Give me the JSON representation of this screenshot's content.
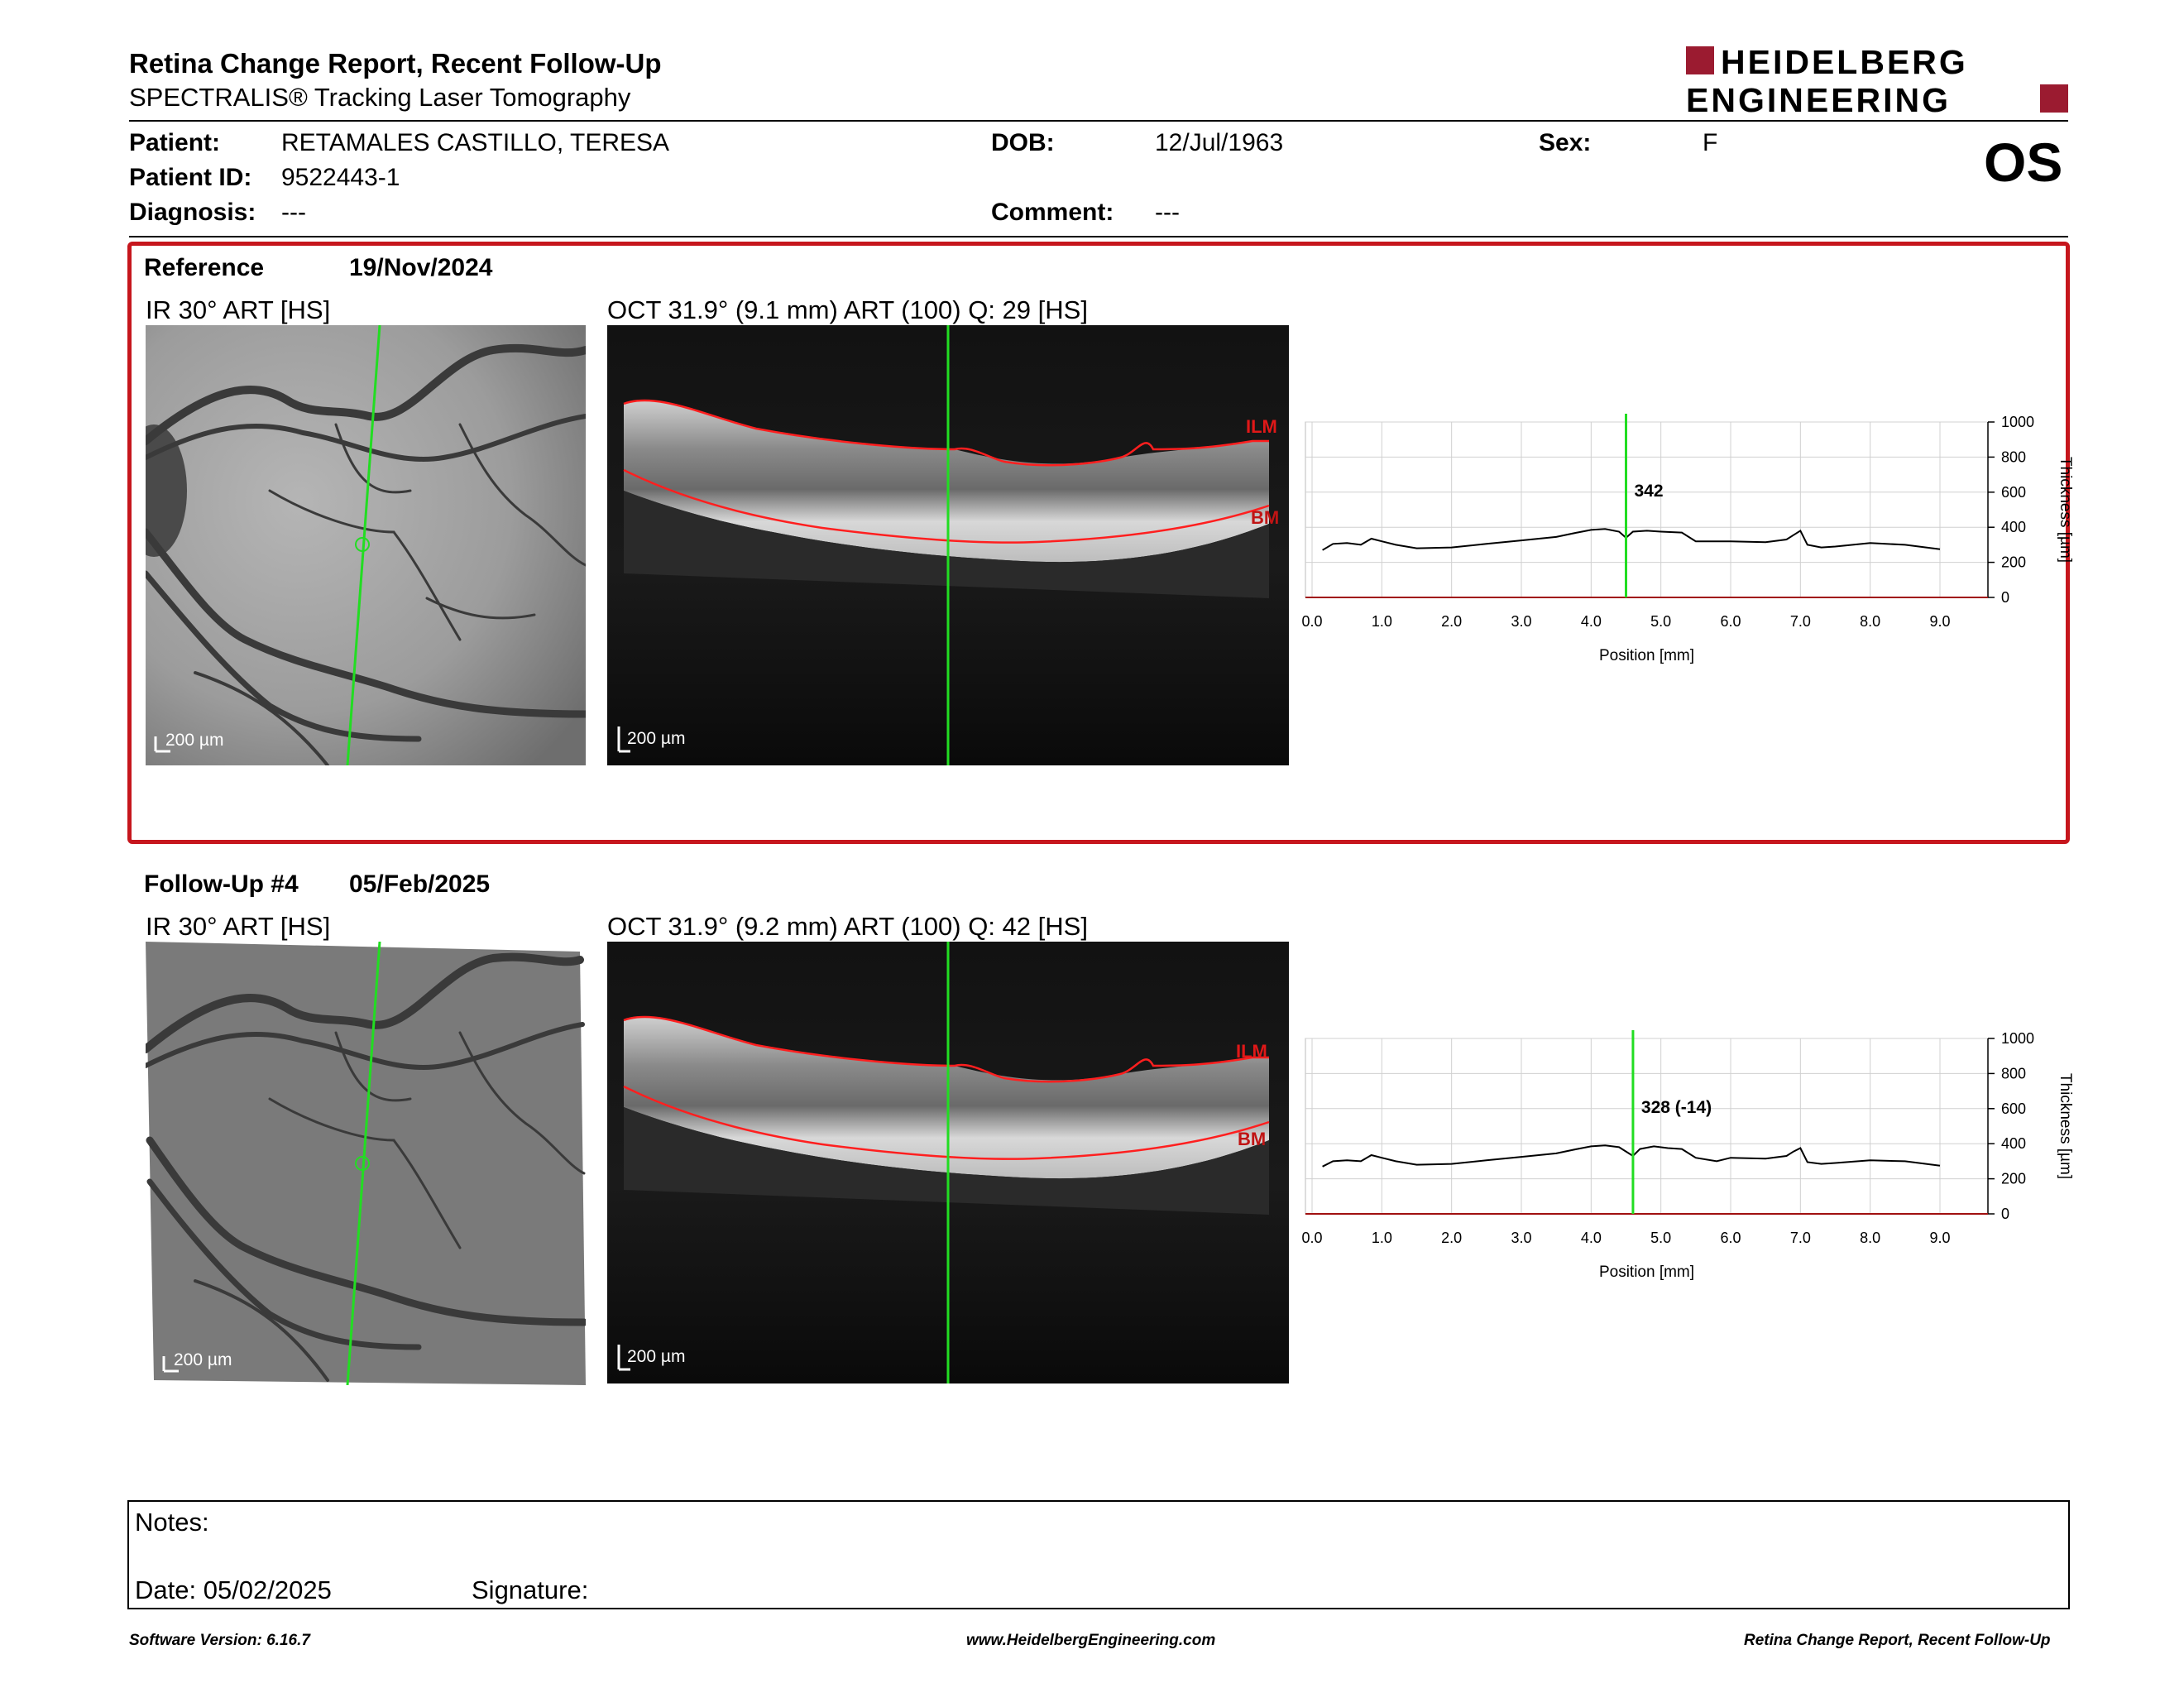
{
  "header": {
    "title": "Retina Change Report, Recent Follow-Up",
    "subtitle": "SPECTRALIS® Tracking Laser Tomography",
    "logo_line1": "HEIDELBERG",
    "logo_line2": "ENGINEERING"
  },
  "patient": {
    "patient_label": "Patient:",
    "patient_name": "RETAMALES CASTILLO, TERESA",
    "dob_label": "DOB:",
    "dob": "12/Jul/1963",
    "sex_label": "Sex:",
    "sex": "F",
    "id_label": "Patient ID:",
    "id": "9522443-1",
    "diagnosis_label": "Diagnosis:",
    "diagnosis": "---",
    "comment_label": "Comment:",
    "comment": "---",
    "eye": "OS"
  },
  "reference": {
    "label": "Reference",
    "date": "19/Nov/2024",
    "ir_title": "IR 30° ART [HS]",
    "oct_title": "OCT 31.9° (9.1 mm) ART (100) Q: 29 [HS]",
    "scale": "200 µm",
    "ilm": "ILM",
    "bm": "BM"
  },
  "followup": {
    "label": "Follow-Up #4",
    "date": "05/Feb/2025",
    "ir_title": "IR 30° ART [HS]",
    "oct_title": "OCT 31.9° (9.2 mm) ART (100) Q: 42 [HS]",
    "scale": "200 µm",
    "ilm": "ILM",
    "bm": "BM"
  },
  "chart_data": [
    {
      "type": "line",
      "ylabel": "Thickness [µm]",
      "xlabel": "Position [mm]",
      "xlim": [
        0,
        9.0
      ],
      "ylim": [
        0,
        1000
      ],
      "x_ticks": [
        "0.0",
        "1.0",
        "2.0",
        "3.0",
        "4.0",
        "5.0",
        "6.0",
        "7.0",
        "8.0",
        "9.0"
      ],
      "y_ticks": [
        "0",
        "200",
        "400",
        "600",
        "800",
        "1000"
      ],
      "marker_x": 4.5,
      "marker_label": "342",
      "grid": true,
      "series": [
        {
          "x": [
            0.15,
            0.3,
            0.5,
            0.7,
            0.85,
            1.0,
            1.2,
            1.5,
            2.0,
            2.5,
            3.0,
            3.5,
            3.8,
            4.0,
            4.2,
            4.4,
            4.5,
            4.6,
            4.8,
            5.0,
            5.3,
            5.5,
            5.8,
            6.0,
            6.5,
            6.8,
            6.9,
            7.0,
            7.1,
            7.3,
            7.5,
            8.0,
            8.5,
            9.0
          ],
          "y": [
            270,
            305,
            310,
            300,
            335,
            320,
            300,
            280,
            285,
            305,
            325,
            345,
            370,
            385,
            390,
            375,
            340,
            375,
            380,
            375,
            370,
            320,
            320,
            320,
            315,
            330,
            355,
            380,
            300,
            285,
            290,
            310,
            300,
            275
          ]
        }
      ]
    },
    {
      "type": "line",
      "ylabel": "Thickness [µm]",
      "xlabel": "Position [mm]",
      "xlim": [
        0,
        9.0
      ],
      "ylim": [
        0,
        1000
      ],
      "x_ticks": [
        "0.0",
        "1.0",
        "2.0",
        "3.0",
        "4.0",
        "5.0",
        "6.0",
        "7.0",
        "8.0",
        "9.0"
      ],
      "y_ticks": [
        "0",
        "200",
        "400",
        "600",
        "800",
        "1000"
      ],
      "marker_x": 4.6,
      "marker_label": "328 (-14)",
      "grid": true,
      "series": [
        {
          "x": [
            0.15,
            0.3,
            0.5,
            0.7,
            0.85,
            1.0,
            1.2,
            1.5,
            2.0,
            2.5,
            3.0,
            3.5,
            3.8,
            4.0,
            4.2,
            4.4,
            4.6,
            4.7,
            4.9,
            5.1,
            5.3,
            5.5,
            5.8,
            6.0,
            6.5,
            6.8,
            6.9,
            7.0,
            7.1,
            7.3,
            7.5,
            8.0,
            8.5,
            9.0
          ],
          "y": [
            270,
            300,
            305,
            300,
            335,
            320,
            300,
            280,
            285,
            305,
            325,
            345,
            370,
            385,
            390,
            380,
            330,
            370,
            385,
            375,
            370,
            320,
            300,
            320,
            315,
            330,
            355,
            375,
            295,
            285,
            290,
            305,
            300,
            275
          ]
        }
      ]
    }
  ],
  "notes": {
    "notes_label": "Notes:",
    "date_label": "Date: 05/02/2025",
    "signature_label": "Signature:"
  },
  "footer": {
    "software": "Software Version: 6.16.7",
    "website": "www.HeidelbergEngineering.com",
    "report": "Retina Change Report, Recent Follow-Up"
  }
}
